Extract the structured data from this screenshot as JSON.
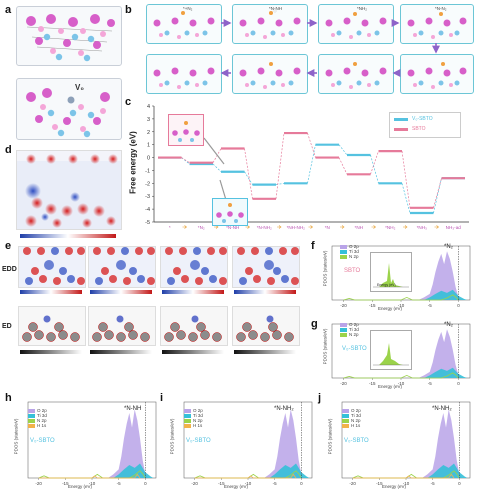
{
  "panel_labels": {
    "a": "a",
    "b": "b",
    "c": "c",
    "d": "d",
    "e": "e",
    "f": "f",
    "g": "g",
    "h": "h",
    "i": "i",
    "j": "j"
  },
  "panel_a": {
    "vacancy_label": "V₀"
  },
  "panel_b": {
    "state_labels": [
      "*+N₂",
      "*N-NH",
      "*NH₂",
      "*N-N₂"
    ]
  },
  "panel_c": {
    "ylabel": "Free energy (eV)",
    "legend": [
      {
        "name": "V₀-SBTO",
        "color": "#55c2e0"
      },
      {
        "name": "SBTO",
        "color": "#e67a9a"
      }
    ],
    "y_ticks": [
      "4",
      "3",
      "2",
      "1",
      "0",
      "-1",
      "-2",
      "-3",
      "-4",
      "-5"
    ],
    "x_steps": [
      "*",
      "*N₂",
      "*N-NH",
      "*N-NH₂",
      "*NH-NH₂",
      "*N",
      "*NH",
      "*NH₂",
      "*NH₃",
      "NH₃-ad"
    ],
    "chart_data": {
      "type": "line",
      "categories": [
        "*",
        "*N₂",
        "*N-NH",
        "*N-NH₂",
        "*NH-NH₂",
        "*N",
        "*NH",
        "*NH₂",
        "*NH₃",
        "NH₃-ad"
      ],
      "series": [
        {
          "name": "V₀-SBTO",
          "values": [
            0.0,
            -0.5,
            -1.1,
            -2.1,
            -2.0,
            1.0,
            0.2,
            -2.0,
            -4.3,
            -1.6
          ]
        },
        {
          "name": "SBTO",
          "values": [
            0.0,
            -0.4,
            0.7,
            -3.2,
            1.9,
            0.0,
            -1.3,
            0.5,
            -3.9,
            -1.6
          ]
        }
      ],
      "ylabel": "Free energy (eV)",
      "ylim": [
        -5,
        4
      ]
    }
  },
  "panel_d": {},
  "panel_e": {
    "row_labels": [
      "EDD",
      "ED"
    ]
  },
  "panel_f": {
    "ylabel": "PDOS (states/eV)",
    "xlabel": "Energy (eV)",
    "species": "*N₂",
    "system": "SBTO",
    "legend": [
      "O 2p",
      "Ti 3d",
      "N 2p"
    ],
    "x_ticks": [
      "-20",
      "-15",
      "-10",
      "-5",
      "0"
    ],
    "inset_xlabel": "Energy (eV)"
  },
  "panel_g": {
    "ylabel": "PDOS (states/eV)",
    "xlabel": "Energy (eV)",
    "species": "*N₂",
    "system": "V₀-SBTO",
    "legend": [
      "O 2p",
      "Ti 3d",
      "N 2p"
    ],
    "x_ticks": [
      "-20",
      "-15",
      "-10",
      "-5",
      "0"
    ]
  },
  "panel_h": {
    "ylabel": "PDOS (states/eV)",
    "xlabel": "Energy (eV)",
    "species": "*N-NH",
    "system": "V₀-SBTO",
    "legend": [
      "O 2p",
      "Ti 3d",
      "N 2p",
      "H 1s"
    ],
    "x_ticks": [
      "-20",
      "-15",
      "-10",
      "-5",
      "0"
    ]
  },
  "panel_i": {
    "ylabel": "PDOS (states/eV)",
    "xlabel": "Energy (eV)",
    "species": "*N-NH₂",
    "system": "V₀-SBTO",
    "legend": [
      "O 2p",
      "Ti 3d",
      "N 2p",
      "H 1s"
    ],
    "x_ticks": [
      "-20",
      "-15",
      "-10",
      "-5",
      "0"
    ]
  },
  "panel_j": {
    "ylabel": "PDOS (states/eV)",
    "xlabel": "Energy (eV)",
    "species": "*N-NH₂",
    "system": "V₀-SBTO",
    "legend": [
      "O 2p",
      "Ti 3d",
      "N 2p",
      "H 1s"
    ],
    "x_ticks": [
      "-20",
      "-15",
      "-10",
      "-5",
      "0"
    ]
  },
  "colors": {
    "o2p": "#b9a3e8",
    "ti3d": "#35c0d8",
    "n2p": "#9bd34a",
    "h1s": "#f2b24a",
    "vo": "#55c2e0",
    "sbto": "#e67a9a"
  }
}
